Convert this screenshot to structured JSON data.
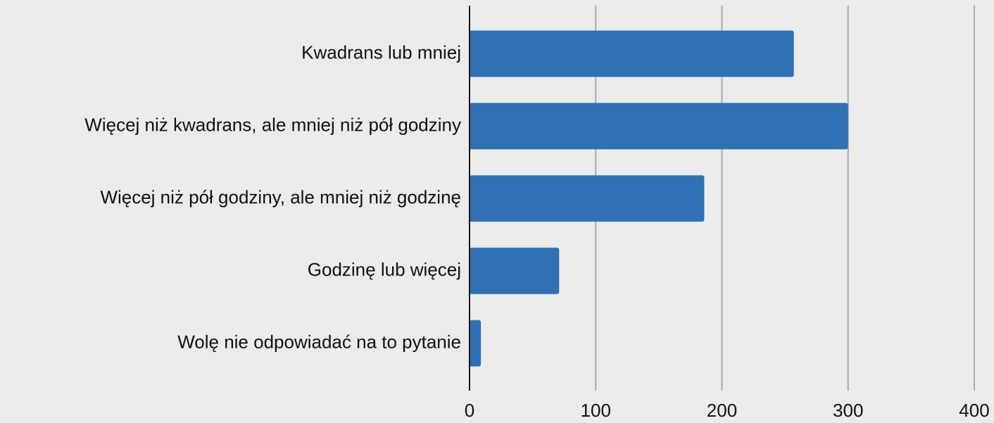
{
  "chart_data": {
    "type": "bar",
    "orientation": "horizontal",
    "categories": [
      "Kwadrans lub mniej",
      "Więcej niż kwadrans, ale mniej niż pół godziny",
      "Więcej niż pół godziny, ale mniej niż godzinę",
      "Godzinę lub więcej",
      "Wolę nie odpowiadać na to pytanie"
    ],
    "values": [
      257,
      300,
      186,
      71,
      9
    ],
    "color": "#2f70b4",
    "xlim": [
      0,
      400
    ],
    "xticks": [
      0,
      100,
      200,
      300,
      400
    ],
    "grid": true
  }
}
